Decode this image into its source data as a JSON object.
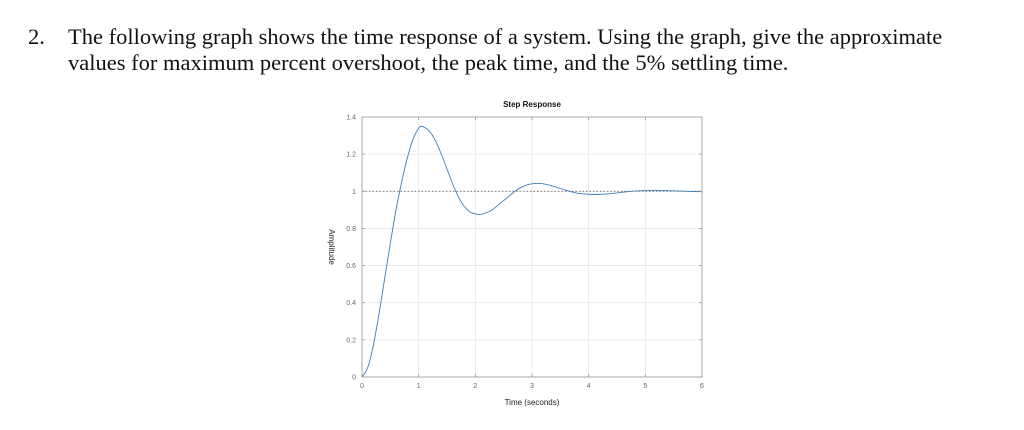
{
  "question": {
    "number": "2.",
    "line1": "The following graph shows the time response of a system. Using the graph, give the approximate",
    "line2": "values for maximum percent overshoot, the peak time, and the 5% settling time."
  },
  "chart_data": {
    "type": "line",
    "title": "Step Response",
    "xlabel": "Time (seconds)",
    "ylabel": "Amplitude",
    "xlim": [
      0,
      6
    ],
    "ylim": [
      0,
      1.4
    ],
    "xticks": [
      "0",
      "1",
      "2",
      "3",
      "4",
      "5",
      "6"
    ],
    "yticks": [
      "0",
      "0.2",
      "0.4",
      "0.6",
      "0.8",
      "1",
      "1.2",
      "1.4"
    ],
    "grid": true,
    "reference_line": {
      "y": 1,
      "style": "dotted"
    },
    "series": [
      {
        "name": "Step Response",
        "color": "#3b7fb8",
        "x": [
          0,
          0.1,
          0.2,
          0.3,
          0.4,
          0.5,
          0.6,
          0.7,
          0.8,
          0.9,
          1.0,
          1.05,
          1.1,
          1.2,
          1.3,
          1.4,
          1.5,
          1.6,
          1.7,
          1.8,
          1.9,
          2.0,
          2.1,
          2.2,
          2.3,
          2.4,
          2.5,
          2.6,
          2.7,
          2.8,
          2.9,
          3.0,
          3.1,
          3.2,
          3.4,
          3.6,
          3.8,
          4.0,
          4.2,
          4.4,
          4.6,
          4.8,
          5.0,
          5.2,
          5.4,
          5.6,
          5.8,
          6.0
        ],
        "values": [
          0,
          0.05,
          0.17,
          0.34,
          0.53,
          0.72,
          0.9,
          1.05,
          1.18,
          1.28,
          1.34,
          1.35,
          1.345,
          1.32,
          1.27,
          1.2,
          1.12,
          1.04,
          0.97,
          0.92,
          0.89,
          0.878,
          0.876,
          0.885,
          0.9,
          0.925,
          0.95,
          0.975,
          1.0,
          1.02,
          1.033,
          1.04,
          1.042,
          1.04,
          1.025,
          1.005,
          0.99,
          0.984,
          0.984,
          0.988,
          0.995,
          1.001,
          1.004,
          1.005,
          1.003,
          1.001,
          0.999,
          0.998
        ]
      }
    ]
  }
}
